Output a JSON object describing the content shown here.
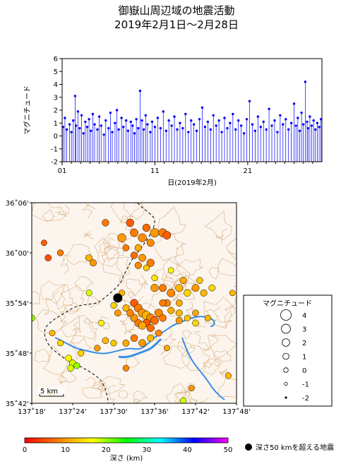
{
  "title_line1": "御嶽山周辺域の地震活動",
  "title_line2": "2019年2月1日〜2月28日",
  "chart_data": {
    "type": "scatter",
    "ylabel": "マグニチュード",
    "xlabel": "日(2019年2月)",
    "x_ticks": [
      "01",
      "11",
      "21"
    ],
    "y_ticks": [
      "6",
      "5",
      "4",
      "3",
      "2",
      "1",
      "0",
      "-1",
      "-2"
    ],
    "ylim": [
      -2,
      6
    ],
    "xlim": [
      1,
      29
    ],
    "baseline": -2,
    "color": "#0000ff",
    "points": [
      [
        1.1,
        0.7
      ],
      [
        1.3,
        1.4
      ],
      [
        1.5,
        0.5
      ],
      [
        1.8,
        0.9
      ],
      [
        2.0,
        0.3
      ],
      [
        2.2,
        1.2
      ],
      [
        2.4,
        3.1
      ],
      [
        2.5,
        0.8
      ],
      [
        2.7,
        1.9
      ],
      [
        2.9,
        0.6
      ],
      [
        3.1,
        1.6
      ],
      [
        3.3,
        0.2
      ],
      [
        3.5,
        1.1
      ],
      [
        3.7,
        0.7
      ],
      [
        3.9,
        1.3
      ],
      [
        4.1,
        0.4
      ],
      [
        4.3,
        1.7
      ],
      [
        4.5,
        0.9
      ],
      [
        4.8,
        0.5
      ],
      [
        5.0,
        1.5
      ],
      [
        5.2,
        0.8
      ],
      [
        5.5,
        0.1
      ],
      [
        5.7,
        1.2
      ],
      [
        6.0,
        0.6
      ],
      [
        6.2,
        1.8
      ],
      [
        6.4,
        0.3
      ],
      [
        6.7,
        1.0
      ],
      [
        6.9,
        2.0
      ],
      [
        7.1,
        0.5
      ],
      [
        7.4,
        1.4
      ],
      [
        7.6,
        0.7
      ],
      [
        7.9,
        1.2
      ],
      [
        8.1,
        0.4
      ],
      [
        8.4,
        1.1
      ],
      [
        8.6,
        0.8
      ],
      [
        8.8,
        0.2
      ],
      [
        9.0,
        1.3
      ],
      [
        9.2,
        0.6
      ],
      [
        9.4,
        3.5
      ],
      [
        9.6,
        1.2
      ],
      [
        9.8,
        0.5
      ],
      [
        10.0,
        1.6
      ],
      [
        10.2,
        0.9
      ],
      [
        10.5,
        0.3
      ],
      [
        10.7,
        1.1
      ],
      [
        11.0,
        0.7
      ],
      [
        11.3,
        1.4
      ],
      [
        11.6,
        0.6
      ],
      [
        11.9,
        1.9
      ],
      [
        12.2,
        0.4
      ],
      [
        12.5,
        1.2
      ],
      [
        12.8,
        0.8
      ],
      [
        13.1,
        1.5
      ],
      [
        13.4,
        0.5
      ],
      [
        13.7,
        1.0
      ],
      [
        14.0,
        0.6
      ],
      [
        14.3,
        1.7
      ],
      [
        14.6,
        0.3
      ],
      [
        14.9,
        1.2
      ],
      [
        15.2,
        0.9
      ],
      [
        15.5,
        0.4
      ],
      [
        15.8,
        1.3
      ],
      [
        16.1,
        2.2
      ],
      [
        16.4,
        0.7
      ],
      [
        16.7,
        1.1
      ],
      [
        17.0,
        0.5
      ],
      [
        17.3,
        1.6
      ],
      [
        17.6,
        0.8
      ],
      [
        17.9,
        1.2
      ],
      [
        18.2,
        0.3
      ],
      [
        18.5,
        1.4
      ],
      [
        18.8,
        0.6
      ],
      [
        19.1,
        1.0
      ],
      [
        19.4,
        1.7
      ],
      [
        19.7,
        0.5
      ],
      [
        20.0,
        1.2
      ],
      [
        20.3,
        0.8
      ],
      [
        20.6,
        0.2
      ],
      [
        20.9,
        1.3
      ],
      [
        21.2,
        2.7
      ],
      [
        21.5,
        0.9
      ],
      [
        21.8,
        0.4
      ],
      [
        22.1,
        1.5
      ],
      [
        22.4,
        0.7
      ],
      [
        22.7,
        1.1
      ],
      [
        23.0,
        0.5
      ],
      [
        23.3,
        2.1
      ],
      [
        23.6,
        0.8
      ],
      [
        23.9,
        1.2
      ],
      [
        24.2,
        0.3
      ],
      [
        24.5,
        1.6
      ],
      [
        24.8,
        0.9
      ],
      [
        25.1,
        1.3
      ],
      [
        25.4,
        0.5
      ],
      [
        25.7,
        1.0
      ],
      [
        26.0,
        2.5
      ],
      [
        26.2,
        0.8
      ],
      [
        26.4,
        1.4
      ],
      [
        26.6,
        0.4
      ],
      [
        26.8,
        1.8
      ],
      [
        27.0,
        0.9
      ],
      [
        27.2,
        4.2
      ],
      [
        27.4,
        1.1
      ],
      [
        27.5,
        0.6
      ],
      [
        27.7,
        1.5
      ],
      [
        27.9,
        0.8
      ],
      [
        28.1,
        1.2
      ],
      [
        28.3,
        0.5
      ],
      [
        28.5,
        1.0
      ],
      [
        28.7,
        0.7
      ],
      [
        28.9,
        1.3
      ]
    ]
  },
  "map": {
    "lat_labels": [
      "36˚06'",
      "36˚00'",
      "35˚54'",
      "35˚48'",
      "35˚42'"
    ],
    "lon_labels": [
      "137˚18'",
      "137˚24'",
      "137˚30'",
      "137˚36'",
      "137˚42'",
      "137˚48'"
    ],
    "lat_range": [
      35.7,
      36.1
    ],
    "lon_range": [
      137.3,
      137.8
    ],
    "scale_label": "5 km",
    "deep_quake": {
      "lon": 137.51,
      "lat": 35.91
    },
    "quakes": [
      [
        137.48,
        36.06,
        1.5,
        8
      ],
      [
        137.52,
        36.03,
        2.5,
        10
      ],
      [
        137.54,
        36.06,
        2.0,
        6
      ],
      [
        137.55,
        36.04,
        2.2,
        8
      ],
      [
        137.57,
        36.03,
        2.5,
        9
      ],
      [
        137.58,
        36.05,
        2.0,
        7
      ],
      [
        137.6,
        36.04,
        2.8,
        10
      ],
      [
        137.62,
        36.04,
        2.5,
        8
      ],
      [
        137.63,
        36.035,
        2.2,
        6
      ],
      [
        137.59,
        36.02,
        1.8,
        9
      ],
      [
        137.56,
        36.01,
        1.5,
        11
      ],
      [
        137.53,
        36.01,
        1.2,
        8
      ],
      [
        137.55,
        35.995,
        1.5,
        7
      ],
      [
        137.57,
        35.99,
        1.8,
        10
      ],
      [
        137.59,
        35.98,
        2.0,
        8
      ],
      [
        137.56,
        35.975,
        1.4,
        9
      ],
      [
        137.34,
        35.99,
        1.2,
        5
      ],
      [
        137.37,
        36.0,
        1.0,
        8
      ],
      [
        137.44,
        35.99,
        1.2,
        12
      ],
      [
        137.45,
        35.98,
        1.4,
        10
      ],
      [
        137.33,
        36.02,
        0.8,
        6
      ],
      [
        137.6,
        35.93,
        2.0,
        10
      ],
      [
        137.62,
        35.93,
        1.8,
        8
      ],
      [
        137.64,
        35.92,
        2.2,
        9
      ],
      [
        137.66,
        35.93,
        1.8,
        12
      ],
      [
        137.68,
        35.92,
        1.5,
        14
      ],
      [
        137.7,
        35.93,
        1.8,
        10
      ],
      [
        137.72,
        35.92,
        1.4,
        12
      ],
      [
        137.74,
        35.93,
        1.2,
        14
      ],
      [
        137.67,
        35.945,
        1.5,
        11
      ],
      [
        137.71,
        35.945,
        1.2,
        13
      ],
      [
        137.63,
        35.9,
        1.6,
        9
      ],
      [
        137.66,
        35.9,
        1.3,
        11
      ],
      [
        137.55,
        35.9,
        2.0,
        6
      ],
      [
        137.56,
        35.89,
        2.2,
        8
      ],
      [
        137.57,
        35.88,
        2.5,
        10
      ],
      [
        137.58,
        35.875,
        2.8,
        12
      ],
      [
        137.59,
        35.87,
        2.5,
        9
      ],
      [
        137.6,
        35.865,
        2.2,
        7
      ],
      [
        137.58,
        35.86,
        2.0,
        6
      ],
      [
        137.56,
        35.86,
        1.8,
        8
      ],
      [
        137.55,
        35.87,
        1.6,
        10
      ],
      [
        137.54,
        35.88,
        1.5,
        9
      ],
      [
        137.57,
        35.855,
        2.0,
        11
      ],
      [
        137.59,
        35.85,
        1.8,
        7
      ],
      [
        137.61,
        35.88,
        2.2,
        9
      ],
      [
        137.62,
        35.87,
        1.6,
        8
      ],
      [
        137.53,
        35.89,
        1.4,
        12
      ],
      [
        137.51,
        35.88,
        1.2,
        10
      ],
      [
        137.5,
        35.895,
        1.0,
        14
      ],
      [
        137.62,
        35.9,
        1.5,
        8
      ],
      [
        137.64,
        35.885,
        1.3,
        11
      ],
      [
        137.66,
        35.88,
        1.2,
        12
      ],
      [
        137.68,
        35.87,
        1.0,
        13
      ],
      [
        137.7,
        35.88,
        1.1,
        11
      ],
      [
        137.66,
        35.865,
        1.4,
        10
      ],
      [
        137.7,
        35.86,
        1.2,
        14
      ],
      [
        137.73,
        35.87,
        1.0,
        12
      ],
      [
        137.55,
        35.83,
        1.6,
        8
      ],
      [
        137.57,
        35.82,
        1.8,
        10
      ],
      [
        137.59,
        35.83,
        1.4,
        12
      ],
      [
        137.61,
        35.84,
        1.2,
        9
      ],
      [
        137.53,
        35.82,
        1.3,
        11
      ],
      [
        137.5,
        35.82,
        1.0,
        13
      ],
      [
        137.48,
        35.825,
        1.2,
        12
      ],
      [
        137.46,
        35.81,
        1.0,
        10
      ],
      [
        137.39,
        35.79,
        1.2,
        16
      ],
      [
        137.4,
        35.78,
        1.4,
        18
      ],
      [
        137.41,
        35.775,
        1.0,
        20
      ],
      [
        137.395,
        35.77,
        1.2,
        18
      ],
      [
        137.42,
        35.8,
        1.0,
        14
      ],
      [
        137.35,
        35.84,
        0.8,
        12
      ],
      [
        137.37,
        35.82,
        0.9,
        14
      ],
      [
        137.3,
        35.87,
        1.2,
        20
      ],
      [
        137.67,
        35.705,
        1.2,
        18
      ],
      [
        137.78,
        35.755,
        1.0,
        12
      ],
      [
        137.53,
        35.77,
        1.0,
        9
      ],
      [
        137.63,
        35.81,
        0.8,
        11
      ],
      [
        137.35,
        35.72,
        0.8,
        14
      ],
      [
        137.69,
        35.73,
        0.8,
        10
      ],
      [
        137.58,
        35.97,
        1.0,
        13
      ],
      [
        137.6,
        35.95,
        1.0,
        15
      ],
      [
        137.64,
        35.965,
        0.8,
        16
      ],
      [
        137.52,
        35.92,
        1.0,
        12
      ],
      [
        137.47,
        35.86,
        0.8,
        16
      ],
      [
        137.44,
        35.92,
        0.9,
        18
      ],
      [
        137.79,
        35.92,
        0.8,
        12
      ]
    ]
  },
  "legend": {
    "title": "マグニチュード",
    "items": [
      {
        "label": "4",
        "mag": 4
      },
      {
        "label": "3",
        "mag": 3
      },
      {
        "label": "2",
        "mag": 2
      },
      {
        "label": "1",
        "mag": 1
      },
      {
        "label": "0",
        "mag": 0
      },
      {
        "label": "-1",
        "mag": -1
      },
      {
        "label": "-2",
        "mag": -2
      }
    ]
  },
  "colorbar": {
    "ticks": [
      "0",
      "10",
      "20",
      "30",
      "40",
      "50"
    ],
    "label": "深さ (km)",
    "stops": [
      "#ff0000",
      "#ff8000",
      "#ffff00",
      "#00ff00",
      "#00ffff",
      "#0000ff",
      "#ff00ff"
    ]
  },
  "deep_label": "深さ50 kmを超える地震"
}
